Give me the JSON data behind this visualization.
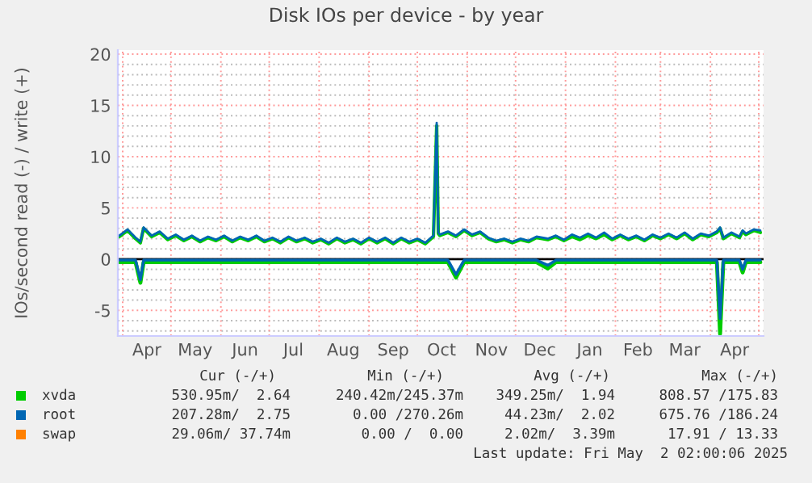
{
  "chart_data": {
    "type": "line",
    "title": "Disk IOs per device - by year",
    "ylabel": "IOs/second read (-) / write (+)",
    "x": [
      "2024-03-30",
      "2024-04-04",
      "2024-04-09",
      "2024-04-12",
      "2024-04-14",
      "2024-04-19",
      "2024-04-24",
      "2024-04-29",
      "2024-05-04",
      "2024-05-09",
      "2024-05-14",
      "2024-05-19",
      "2024-05-24",
      "2024-05-29",
      "2024-06-03",
      "2024-06-08",
      "2024-06-13",
      "2024-06-18",
      "2024-06-23",
      "2024-06-28",
      "2024-07-03",
      "2024-07-08",
      "2024-07-13",
      "2024-07-18",
      "2024-07-23",
      "2024-07-28",
      "2024-08-02",
      "2024-08-07",
      "2024-08-12",
      "2024-08-17",
      "2024-08-22",
      "2024-08-27",
      "2024-09-01",
      "2024-09-06",
      "2024-09-11",
      "2024-09-16",
      "2024-09-21",
      "2024-09-26",
      "2024-10-01",
      "2024-10-06",
      "2024-10-11",
      "2024-10-13",
      "2024-10-14",
      "2024-10-15",
      "2024-10-20",
      "2024-10-25",
      "2024-10-30",
      "2024-11-04",
      "2024-11-09",
      "2024-11-14",
      "2024-11-19",
      "2024-11-24",
      "2024-11-29",
      "2024-12-04",
      "2024-12-09",
      "2024-12-14",
      "2024-12-21",
      "2024-12-26",
      "2024-12-31",
      "2025-01-05",
      "2025-01-10",
      "2025-01-15",
      "2025-01-20",
      "2025-01-25",
      "2025-01-30",
      "2025-02-04",
      "2025-02-09",
      "2025-02-14",
      "2025-02-19",
      "2025-02-24",
      "2025-03-01",
      "2025-03-06",
      "2025-03-11",
      "2025-03-16",
      "2025-03-21",
      "2025-03-26",
      "2025-03-31",
      "2025-04-05",
      "2025-04-07",
      "2025-04-09",
      "2025-04-14",
      "2025-04-19",
      "2025-04-21",
      "2025-04-23",
      "2025-04-28",
      "2025-05-02"
    ],
    "series": [
      {
        "name": "swap",
        "color": "#ff8000",
        "values": [
          null,
          null,
          null,
          null,
          null,
          null,
          null,
          null,
          null,
          null,
          null,
          null,
          null,
          null,
          null,
          null,
          null,
          null,
          null,
          null,
          null,
          null,
          null,
          null,
          null,
          null,
          null,
          null,
          null,
          null,
          null,
          null,
          null,
          null,
          null,
          null,
          null,
          null,
          null,
          null,
          null,
          null,
          null,
          null,
          null,
          null,
          null,
          null,
          null,
          null,
          null,
          null,
          null,
          null,
          null,
          null,
          null,
          null,
          null,
          null,
          null,
          null,
          null,
          null,
          null,
          null,
          null,
          null,
          null,
          null,
          null,
          null,
          null,
          null,
          null,
          null,
          null,
          null,
          null,
          null,
          null,
          null,
          null,
          null,
          null,
          null
        ]
      },
      {
        "color": "#00cc00",
        "values": [
          -0.3,
          -0.3,
          -0.3,
          -2.3,
          -0.3,
          -0.3,
          -0.3,
          -0.3,
          -0.3,
          -0.3,
          -0.3,
          -0.3,
          -0.3,
          -0.3,
          -0.3,
          -0.3,
          -0.3,
          -0.3,
          -0.3,
          -0.3,
          -0.3,
          -0.3,
          -0.3,
          -0.3,
          -0.3,
          -0.3,
          -0.3,
          -0.3,
          -0.3,
          -0.3,
          -0.3,
          -0.3,
          -0.3,
          -0.3,
          -0.3,
          -0.3,
          -0.3,
          -0.3,
          -0.3,
          -0.3,
          -0.3,
          -0.3,
          -0.3,
          -0.3,
          -0.3,
          -1.8,
          -0.3,
          -0.3,
          -0.3,
          -0.3,
          -0.3,
          -0.3,
          -0.3,
          -0.3,
          -0.3,
          -0.3,
          -0.9,
          -0.3,
          -0.3,
          -0.3,
          -0.3,
          -0.3,
          -0.3,
          -0.3,
          -0.3,
          -0.3,
          -0.3,
          -0.3,
          -0.3,
          -0.3,
          -0.3,
          -0.3,
          -0.3,
          -0.3,
          -0.3,
          -0.3,
          -0.3,
          -0.3,
          -7.3,
          -0.3,
          -0.3,
          -0.3,
          -1.3,
          -0.3,
          -0.3,
          -0.3
        ]
      },
      {
        "name": "xvda",
        "color": "#00cc00",
        "values": [
          2.2,
          2.8,
          2.0,
          1.6,
          3.0,
          2.2,
          2.6,
          1.9,
          2.3,
          1.8,
          2.2,
          1.7,
          2.1,
          1.8,
          2.2,
          1.7,
          2.1,
          1.8,
          2.2,
          1.7,
          2.0,
          1.6,
          2.1,
          1.7,
          2.0,
          1.6,
          1.9,
          1.5,
          2.0,
          1.6,
          1.9,
          1.5,
          2.0,
          1.6,
          2.0,
          1.5,
          2.0,
          1.6,
          1.9,
          1.5,
          2.2,
          13.0,
          2.5,
          2.3,
          2.6,
          2.2,
          2.8,
          2.3,
          2.6,
          2.0,
          1.7,
          1.9,
          1.6,
          1.9,
          1.7,
          2.1,
          1.9,
          2.2,
          1.8,
          2.2,
          1.9,
          2.3,
          2.0,
          2.4,
          1.9,
          2.3,
          1.9,
          2.2,
          1.8,
          2.3,
          2.0,
          2.4,
          2.0,
          2.5,
          1.9,
          2.4,
          2.2,
          2.6,
          3.0,
          2.0,
          2.5,
          2.1,
          2.7,
          2.4,
          2.8,
          2.6
        ]
      },
      {
        "color": "#0066b3",
        "values": [
          -0.1,
          -0.1,
          -0.1,
          -2.0,
          -0.1,
          -0.1,
          -0.1,
          -0.1,
          -0.1,
          -0.1,
          -0.1,
          -0.1,
          -0.1,
          -0.1,
          -0.1,
          -0.1,
          -0.1,
          -0.1,
          -0.1,
          -0.1,
          -0.1,
          -0.1,
          -0.1,
          -0.1,
          -0.1,
          -0.1,
          -0.1,
          -0.1,
          -0.1,
          -0.1,
          -0.1,
          -0.1,
          -0.1,
          -0.1,
          -0.1,
          -0.1,
          -0.1,
          -0.1,
          -0.1,
          -0.1,
          -0.1,
          -0.1,
          -0.1,
          -0.1,
          -0.1,
          -1.5,
          -0.1,
          -0.1,
          -0.1,
          -0.1,
          -0.1,
          -0.1,
          -0.1,
          -0.1,
          -0.1,
          -0.1,
          -0.6,
          -0.1,
          -0.1,
          -0.1,
          -0.1,
          -0.1,
          -0.1,
          -0.1,
          -0.1,
          -0.1,
          -0.1,
          -0.1,
          -0.1,
          -0.1,
          -0.1,
          -0.1,
          -0.1,
          -0.1,
          -0.1,
          -0.1,
          -0.1,
          -0.1,
          -5.8,
          -0.1,
          -0.1,
          -0.1,
          -1.0,
          -0.1,
          -0.1,
          -0.1
        ]
      },
      {
        "name": "root",
        "color": "#0066b3",
        "values": [
          2.3,
          2.9,
          2.1,
          1.7,
          3.1,
          2.3,
          2.7,
          2.0,
          2.4,
          1.9,
          2.3,
          1.8,
          2.2,
          1.9,
          2.3,
          1.8,
          2.2,
          1.9,
          2.3,
          1.8,
          2.1,
          1.7,
          2.2,
          1.8,
          2.1,
          1.7,
          2.0,
          1.6,
          2.1,
          1.7,
          2.0,
          1.6,
          2.1,
          1.7,
          2.1,
          1.6,
          2.1,
          1.7,
          2.0,
          1.6,
          2.3,
          13.3,
          2.6,
          2.4,
          2.7,
          2.3,
          2.9,
          2.4,
          2.7,
          2.1,
          1.8,
          2.0,
          1.7,
          2.0,
          1.8,
          2.2,
          2.0,
          2.3,
          1.9,
          2.4,
          2.1,
          2.5,
          2.1,
          2.6,
          2.0,
          2.4,
          2.0,
          2.3,
          1.9,
          2.4,
          2.1,
          2.5,
          2.1,
          2.6,
          2.0,
          2.5,
          2.3,
          2.7,
          3.1,
          2.1,
          2.6,
          2.2,
          2.8,
          2.5,
          2.9,
          2.8
        ]
      }
    ],
    "xlim": [
      "2024-03-29",
      "2025-05-04"
    ],
    "xticks": [
      {
        "value": "2024-04-01",
        "label": null
      },
      {
        "value": "2024-04-16",
        "label": "Apr"
      },
      {
        "value": "2024-05-01",
        "label": null
      },
      {
        "value": "2024-05-16",
        "label": "May"
      },
      {
        "value": "2024-06-01",
        "label": null
      },
      {
        "value": "2024-06-16",
        "label": "Jun"
      },
      {
        "value": "2024-07-01",
        "label": null
      },
      {
        "value": "2024-07-16",
        "label": "Jul"
      },
      {
        "value": "2024-08-01",
        "label": null
      },
      {
        "value": "2024-08-16",
        "label": "Aug"
      },
      {
        "value": "2024-09-01",
        "label": null
      },
      {
        "value": "2024-09-16",
        "label": "Sep"
      },
      {
        "value": "2024-10-01",
        "label": null
      },
      {
        "value": "2024-10-16",
        "label": "Oct"
      },
      {
        "value": "2024-11-01",
        "label": null
      },
      {
        "value": "2024-11-16",
        "label": "Nov"
      },
      {
        "value": "2024-12-01",
        "label": null
      },
      {
        "value": "2024-12-16",
        "label": "Dec"
      },
      {
        "value": "2025-01-01",
        "label": null
      },
      {
        "value": "2025-01-16",
        "label": "Jan"
      },
      {
        "value": "2025-02-01",
        "label": null
      },
      {
        "value": "2025-02-15",
        "label": "Feb"
      },
      {
        "value": "2025-03-01",
        "label": null
      },
      {
        "value": "2025-03-16",
        "label": "Mar"
      },
      {
        "value": "2025-04-01",
        "label": null
      },
      {
        "value": "2025-04-16",
        "label": "Apr"
      },
      {
        "value": "2025-05-01",
        "label": null
      }
    ],
    "ylim": [
      -7.5,
      20.4
    ],
    "yticks": [
      {
        "value": -7,
        "label": null
      },
      {
        "value": -6,
        "label": null
      },
      -5,
      {
        "value": -4,
        "label": null
      },
      {
        "value": -3,
        "label": null
      },
      {
        "value": -2,
        "label": null
      },
      {
        "value": -1,
        "label": null
      },
      0,
      {
        "value": 1,
        "label": null
      },
      {
        "value": 2,
        "label": null
      },
      {
        "value": 3,
        "label": null
      },
      {
        "value": 4,
        "label": null
      },
      5,
      {
        "value": 6,
        "label": null
      },
      {
        "value": 7,
        "label": null
      },
      {
        "value": 8,
        "label": null
      },
      {
        "value": 9,
        "label": null
      },
      10,
      {
        "value": 11,
        "label": null
      },
      {
        "value": 12,
        "label": null
      },
      {
        "value": 13,
        "label": null
      },
      {
        "value": 14,
        "label": null
      },
      15,
      {
        "value": 16,
        "label": null
      },
      {
        "value": 17,
        "label": null
      },
      {
        "value": 18,
        "label": null
      },
      {
        "value": 19,
        "label": null
      },
      20
    ],
    "ref_lines": [
      {
        "axis": "y",
        "value": 0,
        "color": "#000000"
      }
    ],
    "grid": true,
    "legend": "bottom",
    "annotations": [
      "Cur (-/+)",
      "Min (-/+)",
      "Avg (-/+)",
      "Max (-/+)",
      "530.95m/  2.64",
      "240.42m/245.37m",
      "349.25m/  1.94",
      "808.57 /175.83",
      "207.28m/  2.75",
      "  0.00 /270.26m",
      " 44.23m/  2.02",
      "675.76 /186.24",
      " 29.06m/ 37.74m",
      "  0.00 /  0.00",
      "  2.02m/  3.39m",
      " 17.91 / 13.33",
      "Last update: Fri May  2 02:00:06 2025"
    ]
  }
}
